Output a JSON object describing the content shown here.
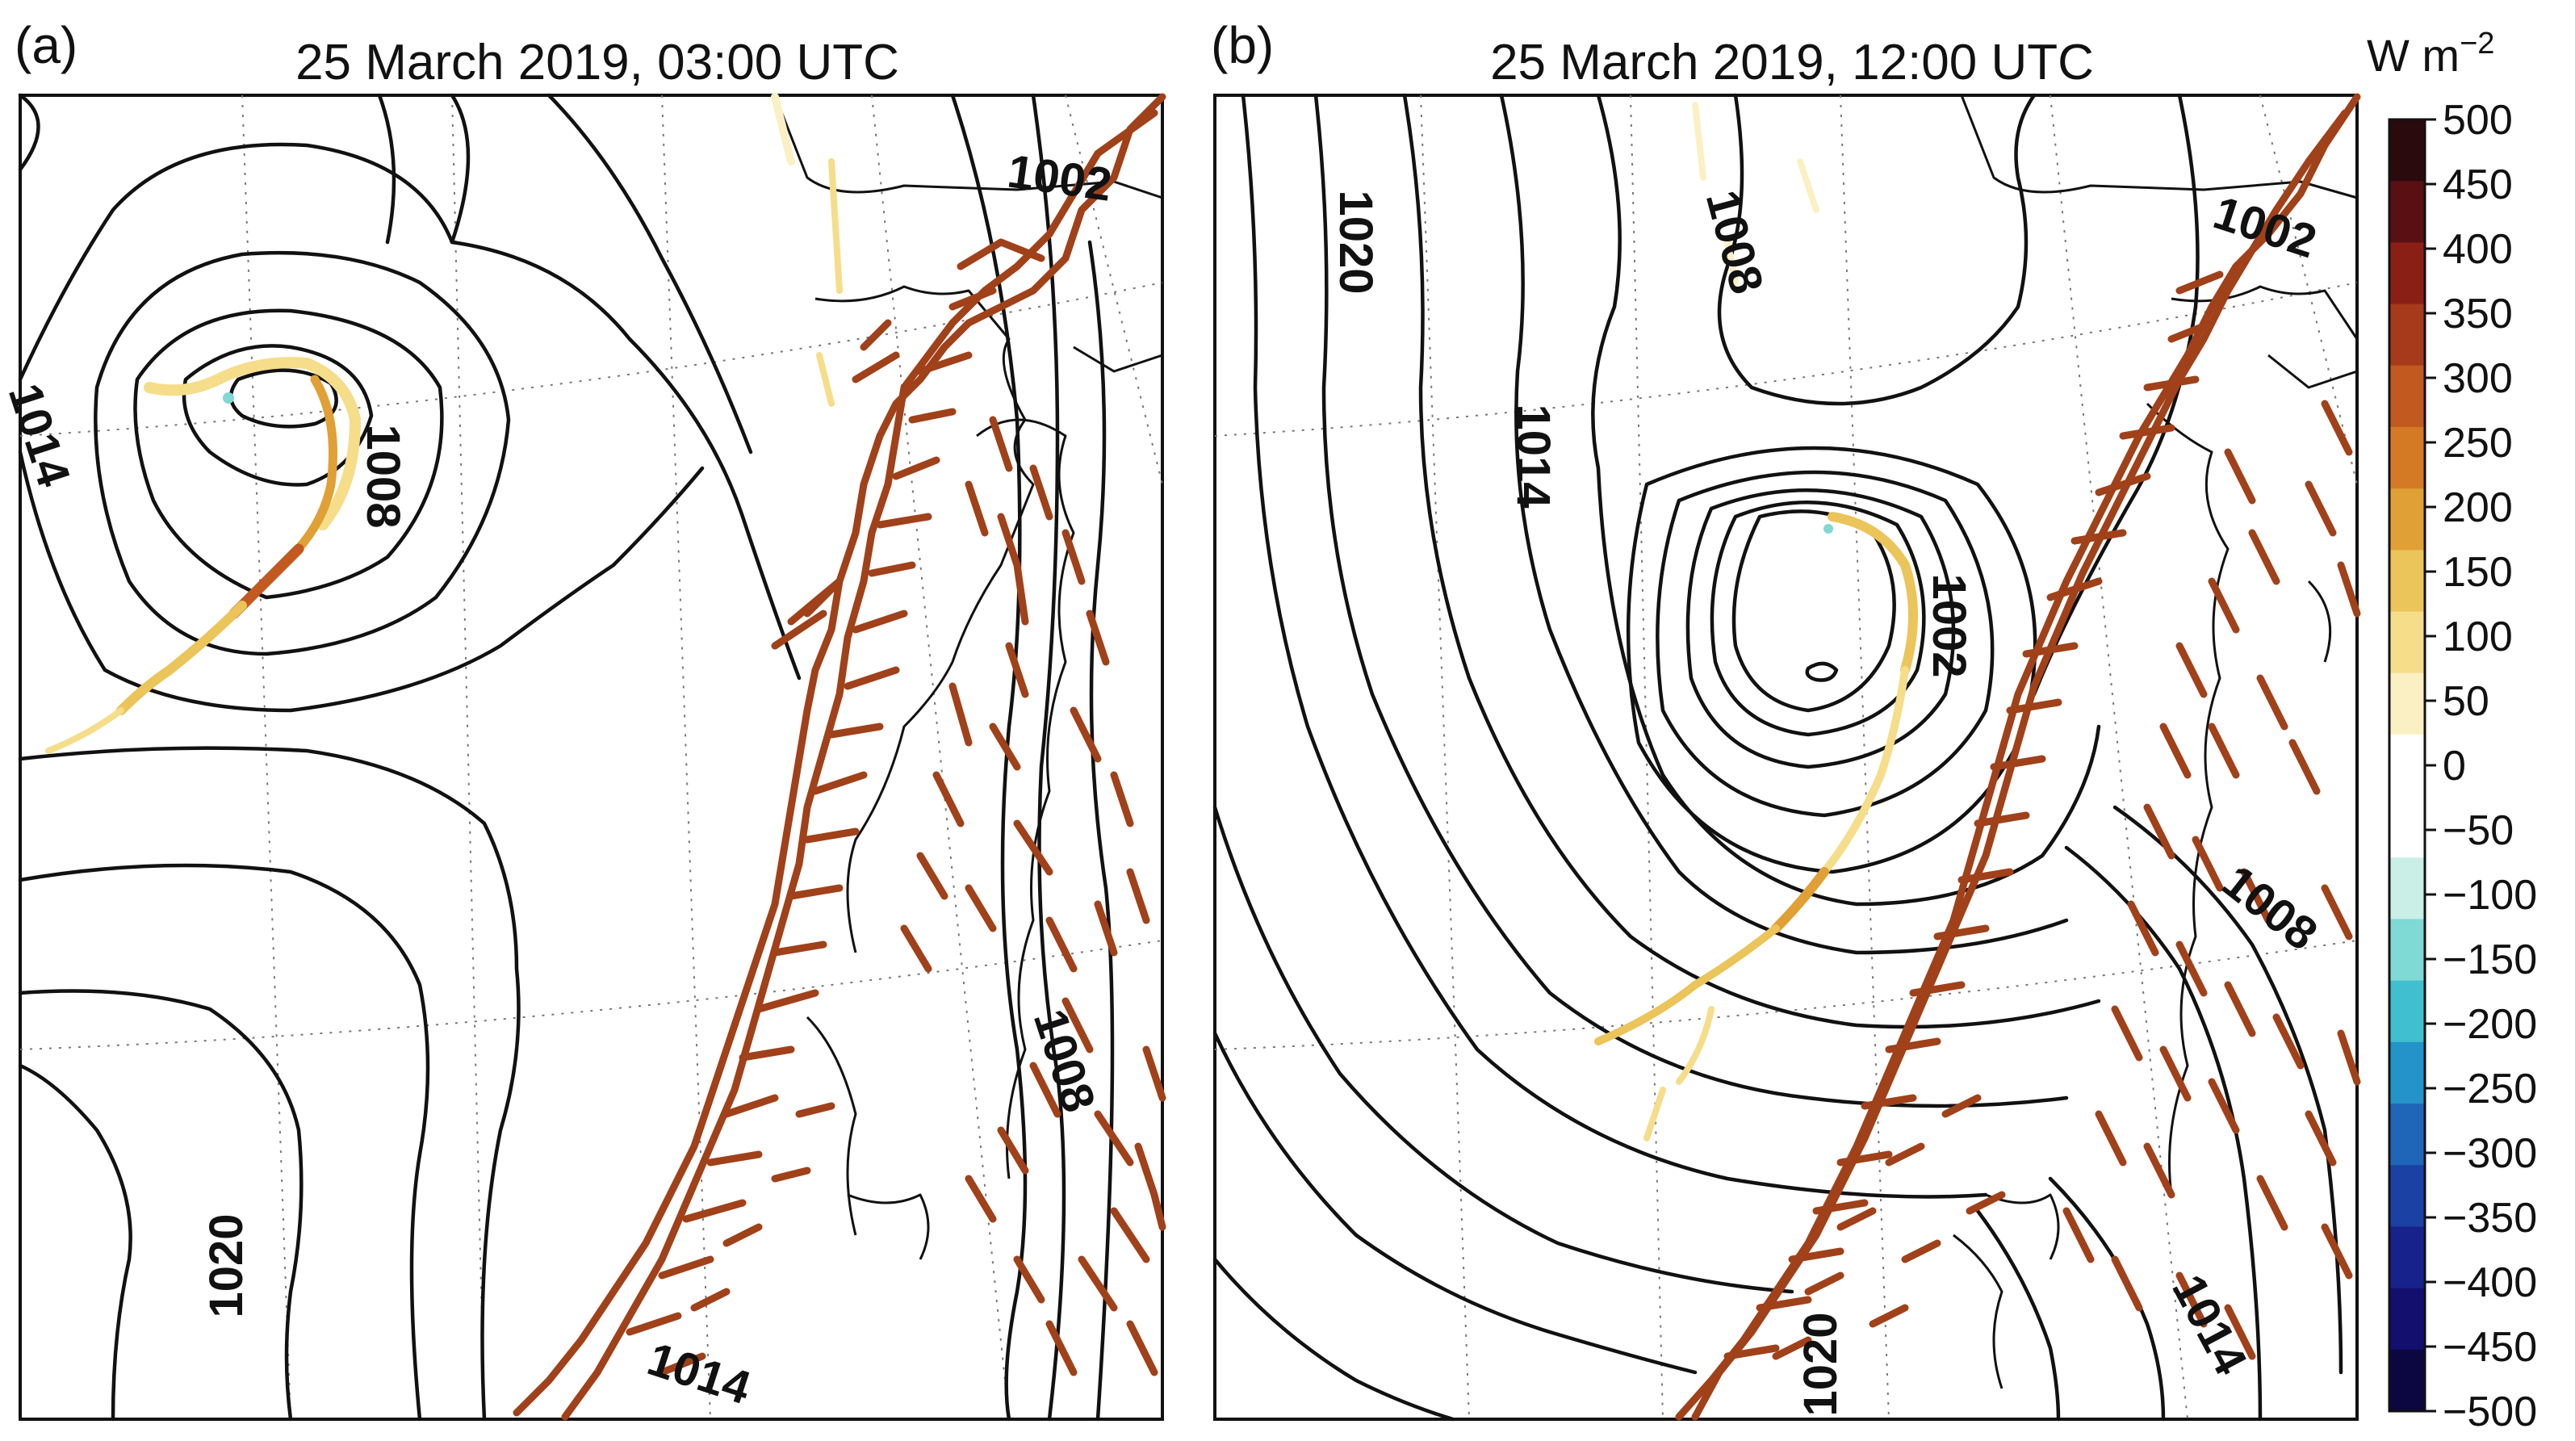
{
  "figure": {
    "panels": [
      {
        "id": "a",
        "label": "(a)",
        "title": "25 March 2019, 03:00 UTC",
        "isobar_labels": [
          "1014",
          "1008",
          "1002",
          "1008",
          "1020",
          "1014"
        ]
      },
      {
        "id": "b",
        "label": "(b)",
        "title": "25 March 2019, 12:00 UTC",
        "isobar_labels": [
          "1020",
          "1014",
          "1008",
          "1002",
          "1002",
          "1008",
          "1014",
          "1020"
        ]
      }
    ],
    "colorbar": {
      "unit_text": "W m",
      "unit_exponent": "−2",
      "ticks": [
        "500",
        "450",
        "400",
        "350",
        "300",
        "250",
        "200",
        "150",
        "100",
        "50",
        "0",
        "−50",
        "−100",
        "−150",
        "−200",
        "−250",
        "−300",
        "−350",
        "−400",
        "−450",
        "−500"
      ],
      "range": [
        -500,
        500
      ],
      "colors": [
        "#2b0a0e",
        "#5a0f12",
        "#8a1f16",
        "#a83a1c",
        "#c2591f",
        "#d47a25",
        "#e0a035",
        "#ebc45a",
        "#f5dd8a",
        "#fbf0c4",
        "#ffffff",
        "#ffffff",
        "#c9efe6",
        "#7fd9d4",
        "#3fbfd0",
        "#2393c9",
        "#1f66b8",
        "#1c41a4",
        "#17228c",
        "#130f6e",
        "#0c0740"
      ]
    }
  }
}
